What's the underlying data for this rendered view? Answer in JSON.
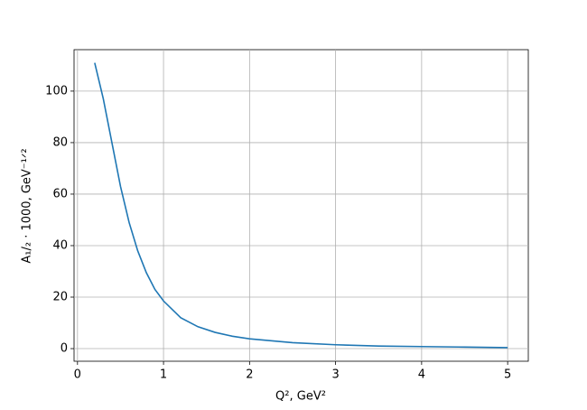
{
  "chart_data": {
    "type": "line",
    "xlabel": "Q², GeV²",
    "ylabel": "A₁/₂ · 1000, GeV⁻¹ᐟ²",
    "x": [
      0.2,
      0.3,
      0.4,
      0.5,
      0.6,
      0.7,
      0.8,
      0.9,
      1.0,
      1.2,
      1.4,
      1.6,
      1.8,
      2.0,
      2.5,
      3.0,
      3.5,
      4.0,
      4.5,
      5.0
    ],
    "values": [
      111,
      97,
      80,
      63,
      49,
      38,
      29.5,
      23,
      18.5,
      12,
      8.5,
      6.3,
      4.8,
      3.8,
      2.3,
      1.5,
      1.0,
      0.8,
      0.6,
      0.4
    ],
    "color": "#1f77b4",
    "xlim": [
      -0.04,
      5.24
    ],
    "xticks": [
      0,
      1,
      2,
      3,
      4,
      5
    ],
    "ylim": [
      -4.9,
      116.1
    ],
    "yticks": [
      0,
      20,
      40,
      60,
      80,
      100
    ],
    "grid": true
  }
}
